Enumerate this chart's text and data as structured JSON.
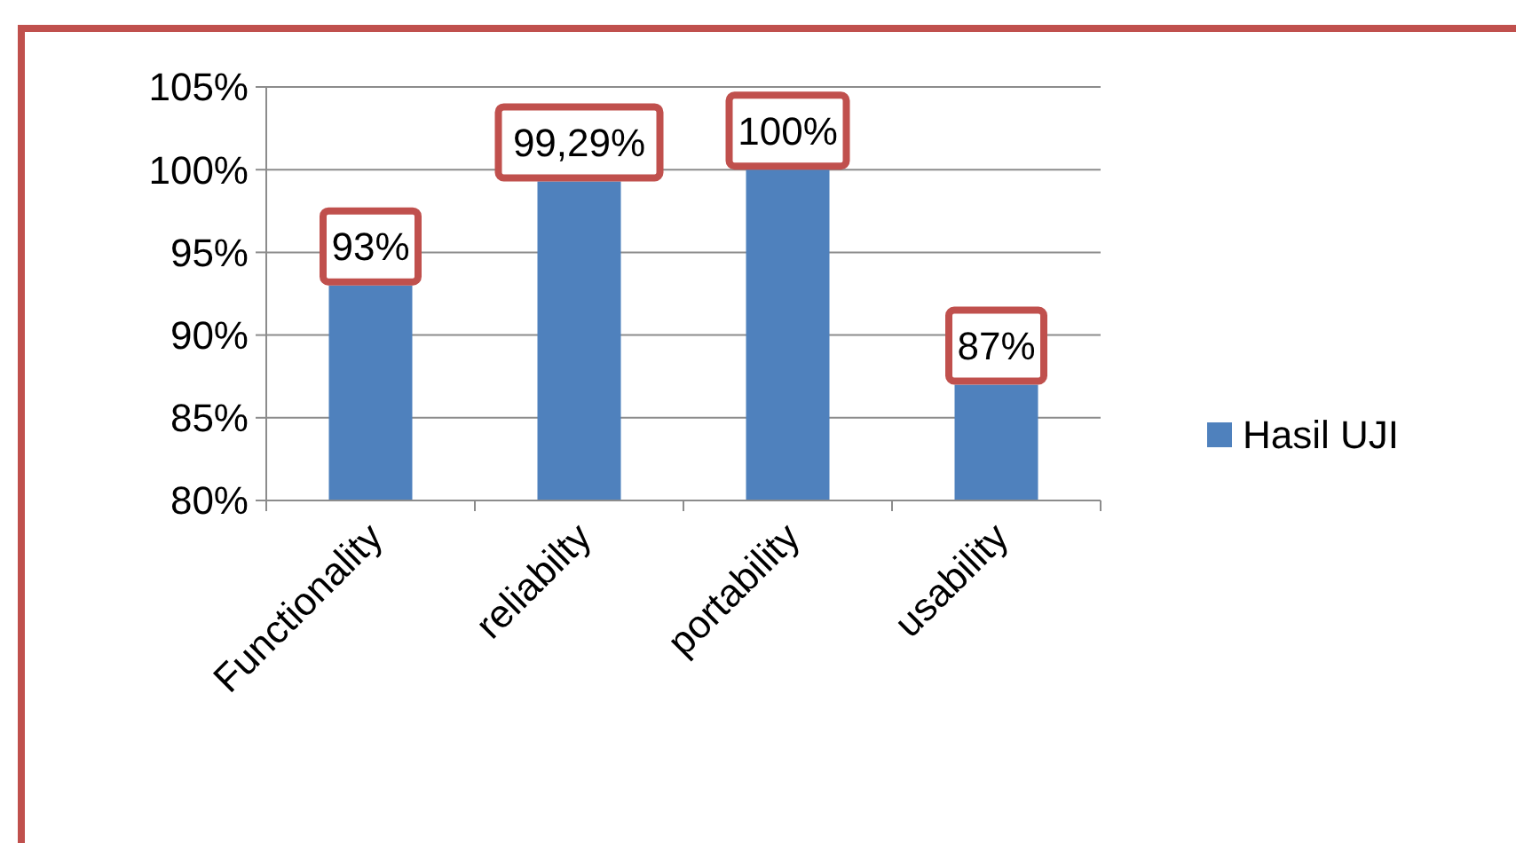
{
  "chart_data": {
    "type": "bar",
    "categories": [
      "Functionality",
      "reliabilty",
      "portability",
      "usability"
    ],
    "series": [
      {
        "name": "Hasil UJI",
        "color": "#4f81bd",
        "values": [
          93,
          99.29,
          100,
          87
        ],
        "value_labels": [
          "93%",
          "99,29%",
          "100%",
          "87%"
        ]
      }
    ],
    "ylim": [
      80,
      105
    ],
    "yticks": [
      {
        "value": 80,
        "label": "80%"
      },
      {
        "value": 85,
        "label": "85%"
      },
      {
        "value": 90,
        "label": "90%"
      },
      {
        "value": 95,
        "label": "95%"
      },
      {
        "value": 100,
        "label": "100%"
      },
      {
        "value": 105,
        "label": "105%"
      }
    ],
    "grid": "y",
    "legend": "right"
  }
}
